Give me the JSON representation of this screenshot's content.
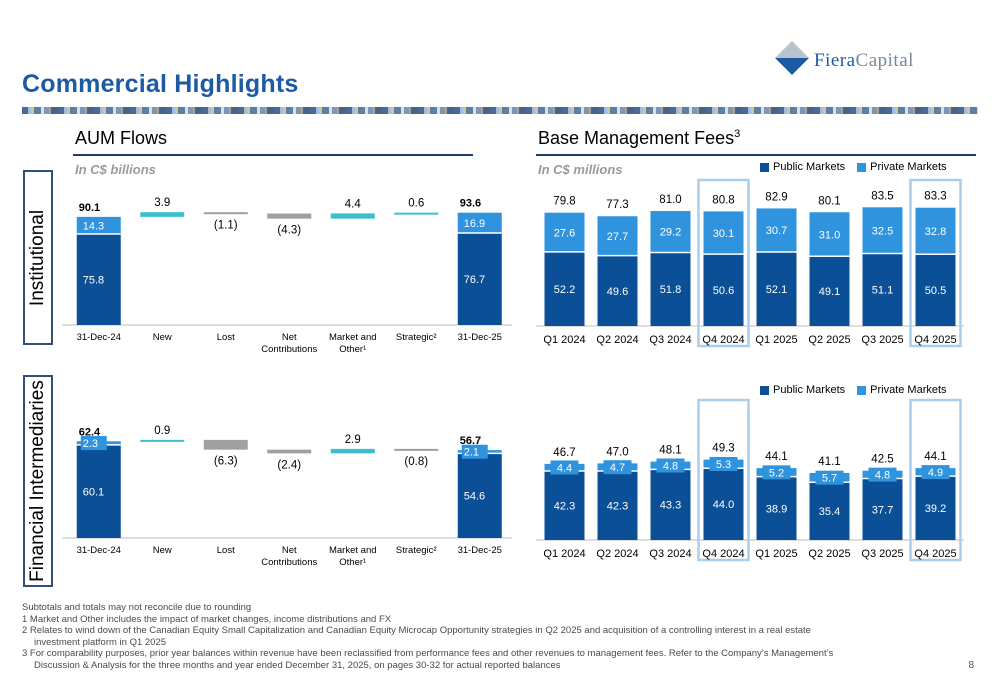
{
  "page": {
    "title": "Commercial Highlights",
    "page_number": "8"
  },
  "logo": {
    "part1": "Fiera",
    "part2": "Capital"
  },
  "sections": {
    "aum_title": "AUM Flows",
    "aum_subtitle": "In C$ billions",
    "fees_title": "Base Management Fees",
    "fees_title_sup": "3",
    "fees_subtitle": "In C$ millions"
  },
  "row_labels": {
    "institutional": "Institutional",
    "financial": "Financial Intermediaries"
  },
  "legend": {
    "public": "Public Markets",
    "private": "Private Markets"
  },
  "colors": {
    "public": "#0b4f96",
    "private": "#2f94dd",
    "lost": "#a0a0a0",
    "gain": "#3bbfcf",
    "highlight": "#a9cfee",
    "title_blue": "#1d5aa6"
  },
  "chart_data": [
    {
      "id": "aum_institutional",
      "type": "bar",
      "subtype": "waterfall",
      "categories": [
        "31-Dec-24",
        "New",
        "Lost",
        "Net Contributions",
        "Market and Other¹",
        "Strategic²",
        "31-Dec-25"
      ],
      "ylim": [
        0,
        100
      ],
      "opening": {
        "public": 75.8,
        "private": 14.3,
        "total": 90.1
      },
      "flows": [
        3.9,
        -1.1,
        -4.3,
        4.4,
        0.6
      ],
      "flow_labels": [
        "3.9",
        "(1.1)",
        "(4.3)",
        "4.4",
        "0.6"
      ],
      "closing": {
        "public": 76.7,
        "private": 16.9,
        "total": 93.6
      }
    },
    {
      "id": "aum_financial_intermediaries",
      "type": "bar",
      "subtype": "waterfall",
      "categories": [
        "31-Dec-24",
        "New",
        "Lost",
        "Net Contributions",
        "Market and Other¹",
        "Strategic²",
        "31-Dec-25"
      ],
      "ylim": [
        0,
        70
      ],
      "opening": {
        "public": 60.1,
        "private": 2.3,
        "total": 62.4
      },
      "flows": [
        0.9,
        -6.3,
        -2.4,
        2.9,
        -0.8
      ],
      "flow_labels": [
        "0.9",
        "(6.3)",
        "(2.4)",
        "2.9",
        "(0.8)"
      ],
      "closing": {
        "public": 54.6,
        "private": 2.1,
        "total": 56.7
      }
    },
    {
      "id": "fees_institutional",
      "type": "bar",
      "subtype": "stacked",
      "categories": [
        "Q1 2024",
        "Q2 2024",
        "Q3 2024",
        "Q4 2024",
        "Q1 2025",
        "Q2 2025",
        "Q3 2025",
        "Q4 2025"
      ],
      "series": [
        {
          "name": "Public Markets",
          "values": [
            52.2,
            49.6,
            51.8,
            50.6,
            52.1,
            49.1,
            51.1,
            50.5
          ]
        },
        {
          "name": "Private Markets",
          "values": [
            27.6,
            27.7,
            29.2,
            30.1,
            30.7,
            31.0,
            32.5,
            32.8
          ]
        }
      ],
      "totals": [
        "79.8",
        "77.3",
        "81.0",
        "80.8",
        "82.9",
        "80.1",
        "83.5",
        "83.3"
      ],
      "highlighted": [
        "Q4 2024",
        "Q4 2025"
      ],
      "ylim": [
        0,
        90
      ]
    },
    {
      "id": "fees_financial_intermediaries",
      "type": "bar",
      "subtype": "stacked",
      "categories": [
        "Q1 2024",
        "Q2 2024",
        "Q3 2024",
        "Q4 2024",
        "Q1 2025",
        "Q2 2025",
        "Q3 2025",
        "Q4 2025"
      ],
      "series": [
        {
          "name": "Public Markets",
          "values": [
            42.3,
            42.3,
            43.3,
            44.0,
            38.9,
            35.4,
            37.7,
            39.2
          ]
        },
        {
          "name": "Private Markets",
          "values": [
            4.4,
            4.7,
            4.8,
            5.3,
            5.2,
            5.7,
            4.8,
            4.9
          ]
        }
      ],
      "totals": [
        "46.7",
        "47.0",
        "48.1",
        "49.3",
        "44.1",
        "41.1",
        "42.5",
        "44.1"
      ],
      "highlighted": [
        "Q4 2024",
        "Q4 2025"
      ],
      "ylim": [
        0,
        55
      ]
    }
  ],
  "footnotes": {
    "line0": "Subtotals and totals may not reconcile due to rounding",
    "line1": "1 Market and Other includes the impact of market changes, income distributions and FX",
    "line2": "2 Relates to wind down of the Canadian Equity Small Capitalization and Canadian Equity Microcap Opportunity strategies in Q2 2025 and acquisition of a controlling interest in a real estate",
    "line2b": "investment platform in Q1 2025",
    "line3": "3 For comparability purposes, prior year balances within revenue have been reclassified from performance fees and other revenues to management fees. Refer to the Company’s Management’s",
    "line3b": "Discussion & Analysis for the three months and year ended December 31, 2025, on pages 30-32 for actual reported balances"
  }
}
